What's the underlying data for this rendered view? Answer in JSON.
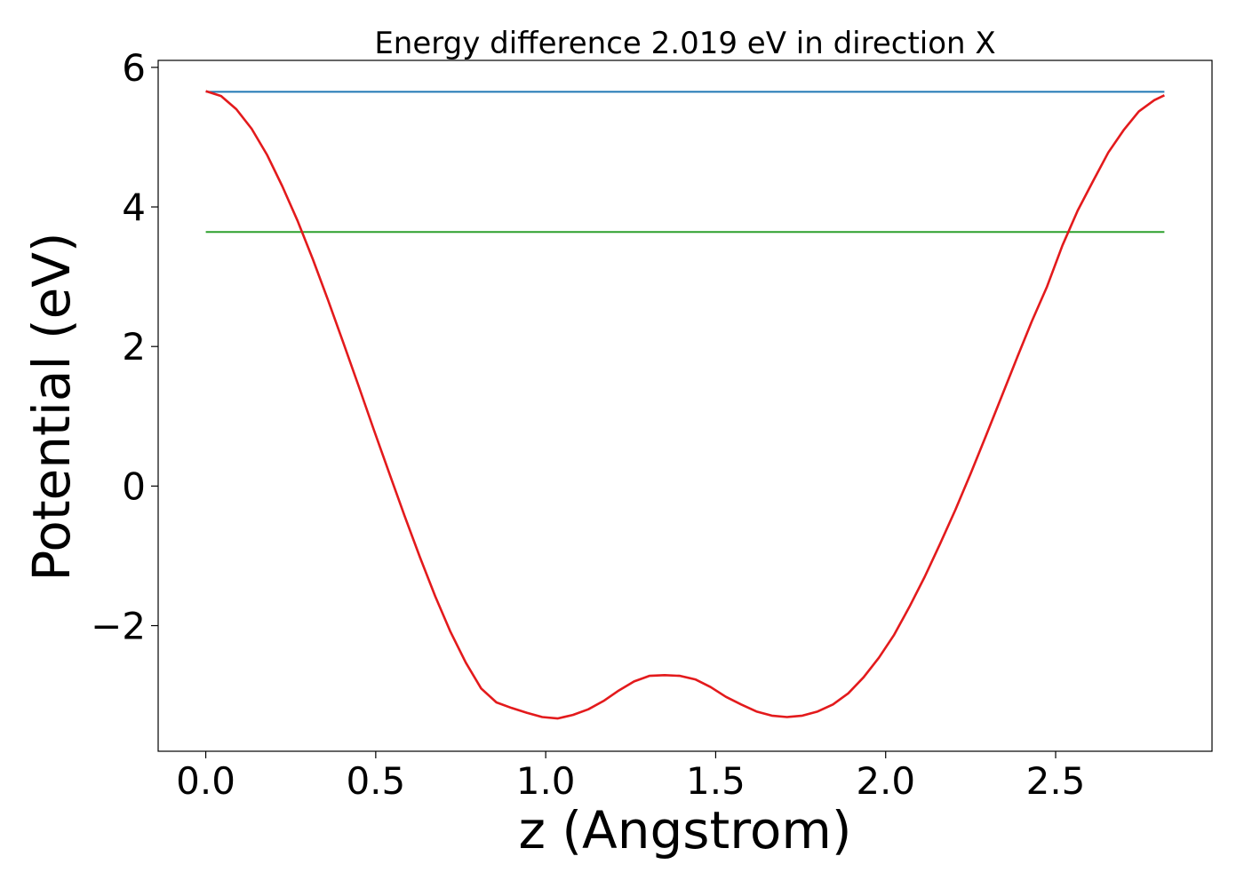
{
  "chart_data": {
    "type": "line",
    "title": "Energy difference 2.019 eV in direction X",
    "xlabel": "z (Angstrom)",
    "ylabel": "Potential (eV)",
    "xlim": [
      -0.14,
      2.96
    ],
    "ylim": [
      -3.8,
      6.1
    ],
    "xticks": [
      0.0,
      0.5,
      1.0,
      1.5,
      2.0,
      2.5
    ],
    "xtick_labels": [
      "0.0",
      "0.5",
      "1.0",
      "1.5",
      "2.0",
      "2.5"
    ],
    "yticks": [
      -2,
      0,
      2,
      4,
      6
    ],
    "ytick_labels": [
      "−2",
      "0",
      "2",
      "4",
      "6"
    ],
    "grid": false,
    "legend": "none",
    "series": [
      {
        "color": "#1f77b4",
        "x": [
          0.0,
          2.82
        ],
        "y": [
          5.65,
          5.65
        ]
      },
      {
        "color": "#2ca02c",
        "x": [
          0.0,
          2.82
        ],
        "y": [
          3.64,
          3.64
        ]
      },
      {
        "color": "#e31a1c",
        "x": [
          0.0,
          0.045,
          0.09,
          0.135,
          0.18,
          0.225,
          0.27,
          0.315,
          0.36,
          0.405,
          0.45,
          0.495,
          0.54,
          0.585,
          0.63,
          0.675,
          0.72,
          0.765,
          0.81,
          0.855,
          0.9,
          0.945,
          0.99,
          1.035,
          1.08,
          1.125,
          1.17,
          1.215,
          1.26,
          1.305,
          1.35,
          1.395,
          1.44,
          1.485,
          1.53,
          1.575,
          1.62,
          1.665,
          1.71,
          1.755,
          1.8,
          1.845,
          1.89,
          1.935,
          1.98,
          2.025,
          2.07,
          2.115,
          2.16,
          2.205,
          2.25,
          2.295,
          2.34,
          2.385,
          2.43,
          2.475,
          2.52,
          2.565,
          2.61,
          2.655,
          2.7,
          2.745,
          2.79,
          2.82
        ],
        "y": [
          5.66,
          5.59,
          5.4,
          5.12,
          4.75,
          4.3,
          3.8,
          3.25,
          2.66,
          2.05,
          1.43,
          0.8,
          0.18,
          -0.43,
          -1.02,
          -1.58,
          -2.09,
          -2.53,
          -2.9,
          -3.1,
          -3.18,
          -3.25,
          -3.31,
          -3.33,
          -3.28,
          -3.2,
          -3.08,
          -2.93,
          -2.8,
          -2.72,
          -2.71,
          -2.72,
          -2.77,
          -2.88,
          -3.02,
          -3.13,
          -3.23,
          -3.29,
          -3.31,
          -3.29,
          -3.23,
          -3.13,
          -2.97,
          -2.74,
          -2.46,
          -2.13,
          -1.73,
          -1.3,
          -0.83,
          -0.34,
          0.18,
          0.72,
          1.27,
          1.82,
          2.36,
          2.86,
          3.45,
          3.95,
          4.37,
          4.78,
          5.1,
          5.37,
          5.53,
          5.6
        ]
      }
    ]
  }
}
